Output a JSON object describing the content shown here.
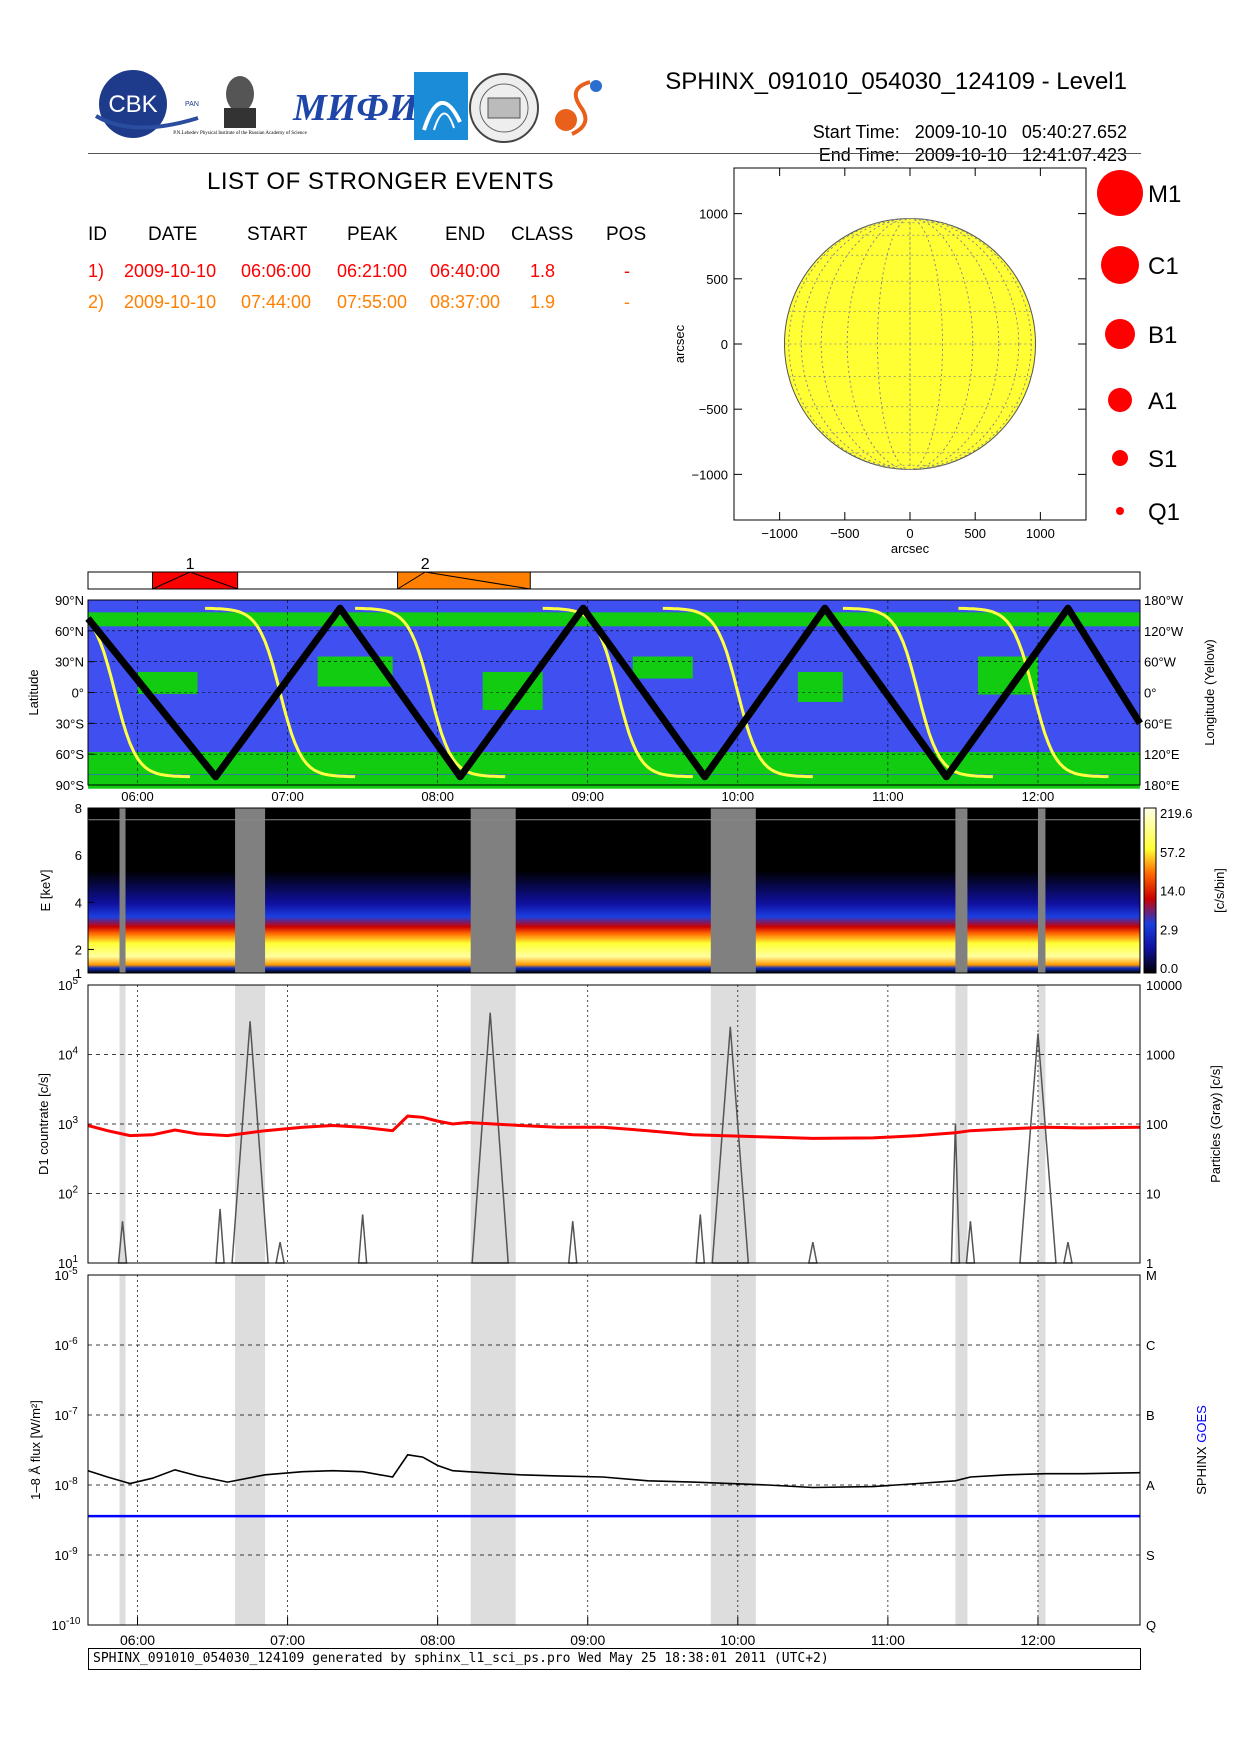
{
  "header": {
    "title": "SPHINX_091010_054030_124109 - Level1",
    "start_label": "Start Time:",
    "start_date": "2009-10-10",
    "start_time": "05:40:27.652",
    "end_label": "End Time:",
    "end_date": "2009-10-10",
    "end_time": "12:41:07.423",
    "logos": [
      "CBK PAN",
      "P.N.Lebedev Physical Institute of the Russian Academy of Science",
      "MIFI",
      "Ioffe",
      "Observatory seal",
      "S"
    ],
    "logo_cbk_text": "CBK",
    "logo_cbk_small": "PAN",
    "logo_lebedev_text": "P.N.Lebedev Physical Institute of the Russian Academy of Science",
    "logo_mifi_text": "МИФИ"
  },
  "events": {
    "title": "LIST OF STRONGER EVENTS",
    "columns": [
      "ID",
      "DATE",
      "START",
      "PEAK",
      "END",
      "CLASS",
      "POS"
    ],
    "rows": [
      {
        "id": "1)",
        "date": "2009-10-10",
        "start": "06:06:00",
        "peak": "06:21:00",
        "end": "06:40:00",
        "class": "1.8",
        "pos": "-",
        "color": "#ff0000"
      },
      {
        "id": "2)",
        "date": "2009-10-10",
        "start": "07:44:00",
        "peak": "07:55:00",
        "end": "08:37:00",
        "class": "1.9",
        "pos": "-",
        "color": "#ff8000"
      }
    ]
  },
  "size_legend": [
    "M1",
    "C1",
    "B1",
    "A1",
    "S1",
    "Q1"
  ],
  "colors": {
    "red": "#ff0000",
    "orange": "#ff8000",
    "sun": "#ffff33",
    "ocean": "#3f4ff0",
    "saa": "#11cc11",
    "track": "#000000",
    "longitude": "#ffff44",
    "goes": "#0000ff",
    "particles": "#555555",
    "data_gap": "#808080",
    "shade": "#dddddd"
  },
  "chart_data": [
    {
      "type": "scatter",
      "panel": "solar-disk",
      "xlabel": "arcsec",
      "ylabel": "arcsec",
      "xlim": [
        -1350,
        1350
      ],
      "ylim": [
        -1350,
        1350
      ],
      "xticks": [
        -1000,
        -500,
        0,
        500,
        1000
      ],
      "yticks": [
        -1000,
        -500,
        0,
        500,
        1000
      ],
      "xtick_labels": [
        "−1000",
        "−500",
        "0",
        "500",
        "1000"
      ],
      "ytick_labels": [
        "−1000",
        "−500",
        "0",
        "500",
        "1000"
      ],
      "sun_radius": 963,
      "points": []
    },
    {
      "type": "bar",
      "panel": "event-timeline",
      "events": [
        {
          "id": "1",
          "start": 6.1,
          "peak": 6.35,
          "end": 6.667,
          "color": "#ff0000"
        },
        {
          "id": "2",
          "start": 7.733,
          "peak": 7.917,
          "end": 8.617,
          "color": "#ff8000"
        }
      ]
    },
    {
      "type": "line",
      "panel": "orbit",
      "ylabel": "Latitude",
      "y2label": "Longitude (Yellow)",
      "yticks": [
        90,
        60,
        30,
        0,
        -30,
        -60,
        -90
      ],
      "ytick_labels": [
        "90°N",
        "60°N",
        "30°N",
        "0°",
        "30°S",
        "60°S",
        "90°S"
      ],
      "y2tick_labels": [
        "180°W",
        "120°W",
        "60°W",
        "0°",
        "60°E",
        "120°E",
        "180°E"
      ],
      "latitude_turning_points": [
        [
          5.67,
          72
        ],
        [
          6.52,
          -82
        ],
        [
          7.35,
          82
        ],
        [
          8.15,
          -82
        ],
        [
          8.97,
          82
        ],
        [
          9.78,
          -82
        ],
        [
          10.58,
          82
        ],
        [
          11.39,
          -82
        ],
        [
          12.2,
          82
        ],
        [
          12.68,
          -30
        ]
      ],
      "longitude_wrap_times": [
        5.85,
        6.95,
        7.95,
        9.2,
        10.0,
        11.2,
        11.97
      ]
    },
    {
      "type": "heatmap",
      "panel": "spectrogram",
      "ylabel": "E [keV]",
      "yticks": [
        1,
        2,
        4,
        6,
        8
      ],
      "colorbar_label": "[c/s/bin]",
      "colorbar_ticks": [
        "219.6",
        "57.2",
        "14.0",
        "2.9",
        "0.0"
      ],
      "gaps": [
        [
          5.88,
          5.92
        ],
        [
          6.65,
          6.85
        ],
        [
          8.22,
          8.52
        ],
        [
          9.82,
          10.12
        ],
        [
          11.45,
          11.53
        ],
        [
          12.0,
          12.05
        ]
      ]
    },
    {
      "type": "line",
      "panel": "countrate",
      "ylabel": "D1 countrate [c/s]",
      "y2label": "Particles (Gray) [c/s]",
      "y2label_parts": [
        "Particles (",
        "Gray",
        ") [c/s]"
      ],
      "yscale": "log",
      "ylim": [
        10,
        100000
      ],
      "ytick_exponents": [
        1,
        2,
        3,
        4,
        5
      ],
      "y2ticks": [
        "1",
        "10",
        "100",
        "1000",
        "10000"
      ],
      "series": [
        {
          "name": "D1",
          "color": "#ff0000",
          "x": [
            5.67,
            5.8,
            5.95,
            6.1,
            6.25,
            6.4,
            6.6,
            6.85,
            7.1,
            7.3,
            7.5,
            7.7,
            7.8,
            7.9,
            8.0,
            8.1,
            8.2,
            8.55,
            8.8,
            9.1,
            9.4,
            9.7,
            10.2,
            10.5,
            10.9,
            11.2,
            11.45,
            11.55,
            11.8,
            12.05,
            12.3,
            12.68
          ],
          "y": [
            950,
            800,
            680,
            700,
            820,
            720,
            680,
            800,
            900,
            950,
            900,
            800,
            1300,
            1250,
            1100,
            1000,
            1050,
            950,
            900,
            900,
            800,
            700,
            650,
            620,
            630,
            680,
            750,
            800,
            850,
            900,
            880,
            900
          ]
        },
        {
          "name": "",
          "color": "#555555",
          "scale": "right",
          "ylim": [
            1,
            10000
          ],
          "bursts": [
            [
              5.9,
              4
            ],
            [
              6.55,
              6
            ],
            [
              6.75,
              3000
            ],
            [
              6.95,
              2
            ],
            [
              7.5,
              5
            ],
            [
              8.35,
              4000
            ],
            [
              8.9,
              4
            ],
            [
              9.75,
              5
            ],
            [
              9.95,
              2500
            ],
            [
              10.5,
              2
            ],
            [
              11.45,
              100
            ],
            [
              11.55,
              4
            ],
            [
              12.0,
              2000
            ],
            [
              12.2,
              2
            ]
          ]
        }
      ]
    },
    {
      "type": "line",
      "panel": "flux",
      "ylabel": "1–8 Å flux [W/m²]",
      "y2label": "SPHINX GOES",
      "y2label_parts": [
        "SPHINX",
        "GOES"
      ],
      "yscale": "log",
      "ylim": [
        1e-10,
        1e-05
      ],
      "ytick_exponents": [
        -10,
        -9,
        -8,
        -7,
        -6,
        -5
      ],
      "class_labels": [
        "Q",
        "S",
        "A",
        "B",
        "C",
        "M"
      ],
      "xticks": [
        6,
        7,
        8,
        9,
        10,
        11,
        12
      ],
      "xtick_labels": [
        "06:00",
        "07:00",
        "08:00",
        "09:00",
        "10:00",
        "11:00",
        "12:00"
      ],
      "xlim": [
        5.67,
        12.68
      ],
      "series": [
        {
          "name": "SPHINX",
          "color": "#000000",
          "x": [
            5.67,
            5.8,
            5.95,
            6.1,
            6.25,
            6.4,
            6.6,
            6.85,
            7.1,
            7.3,
            7.5,
            7.7,
            7.8,
            7.9,
            8.0,
            8.1,
            8.2,
            8.55,
            8.8,
            9.1,
            9.4,
            9.7,
            10.2,
            10.5,
            10.9,
            11.2,
            11.45,
            11.55,
            11.8,
            12.05,
            12.3,
            12.68
          ],
          "y": [
            1.6e-08,
            1.3e-08,
            1.05e-08,
            1.25e-08,
            1.65e-08,
            1.35e-08,
            1.1e-08,
            1.4e-08,
            1.55e-08,
            1.6e-08,
            1.55e-08,
            1.3e-08,
            2.7e-08,
            2.5e-08,
            1.9e-08,
            1.6e-08,
            1.55e-08,
            1.4e-08,
            1.35e-08,
            1.3e-08,
            1.15e-08,
            1.1e-08,
            1e-08,
            9.2e-09,
            9.5e-09,
            1.05e-08,
            1.15e-08,
            1.3e-08,
            1.4e-08,
            1.45e-08,
            1.45e-08,
            1.5e-08
          ]
        },
        {
          "name": "GOES",
          "color": "#0000ff",
          "x": [
            5.67,
            12.68
          ],
          "y": [
            3.6e-09,
            3.6e-09
          ]
        }
      ]
    }
  ],
  "footer": {
    "text": "SPHINX_091010_054030_124109 generated by sphinx_l1_sci_ps.pro Wed May 25 18:38:01 2011 (UTC+2)"
  }
}
